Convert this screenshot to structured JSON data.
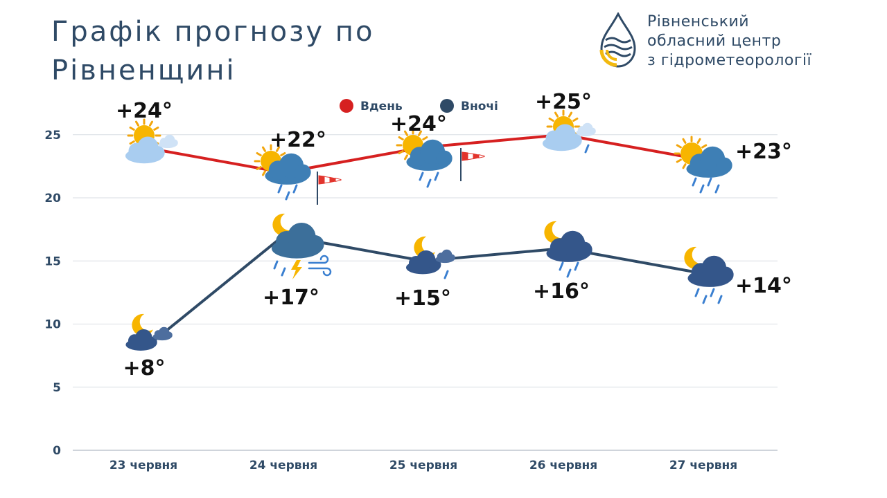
{
  "header": {
    "title_line1": "Графік прогнозу по",
    "title_line2": "Рівненщині"
  },
  "org": {
    "line1": "Рівненський",
    "line2": "обласний центр",
    "line3": "з гідрометеорології",
    "logo_icon": "water-drop-emblem-icon",
    "logo_colors": [
      "#2f4a66",
      "#f2b90f"
    ]
  },
  "chart_data": {
    "type": "line",
    "categories": [
      "23 червня",
      "24 червня",
      "25 червня",
      "26 червня",
      "27 червня"
    ],
    "series": [
      {
        "name": "Вдень",
        "color": "#d62020",
        "values": [
          24,
          22,
          24,
          25,
          23
        ],
        "labels": [
          "+24°",
          "+22°",
          "+24°",
          "+25°",
          "+23°"
        ]
      },
      {
        "name": "Вночі",
        "color": "#2f4a66",
        "values": [
          8,
          17,
          15,
          16,
          14
        ],
        "labels": [
          "+8°",
          "+17°",
          "+15°",
          "+16°",
          "+14°"
        ]
      }
    ],
    "ylim": [
      0,
      27
    ],
    "yticks": [
      0,
      5,
      10,
      15,
      20,
      25
    ],
    "grid": true,
    "legend_position": "top-center",
    "day_icons": [
      "sun-cloud-icon",
      "sun-rain-cloud-icon",
      "sun-rain-cloud-icon",
      "sun-cloud-rain-icon",
      "sun-rain-cloud-icon"
    ],
    "night_icons": [
      "moon-cloud-icon",
      "moon-storm-wind-icon",
      "moon-cloud-rain-icon",
      "moon-rain-cloud-icon",
      "moon-rain-cloud-icon"
    ],
    "wind_icons": [
      "",
      "windsock-icon",
      "windsock-icon",
      "",
      ""
    ]
  }
}
